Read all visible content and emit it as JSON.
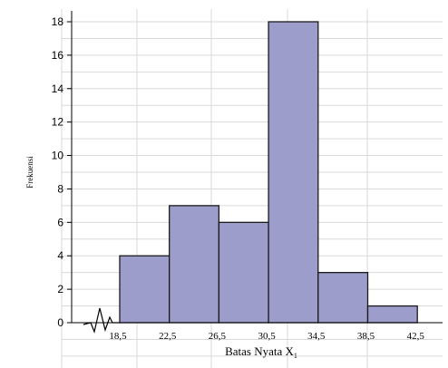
{
  "chart_data": {
    "type": "bar",
    "subtype": "histogram",
    "ylabel": "Frekuensi",
    "xlabel": "Batas  Nyata X",
    "xlabel_subscript": "1",
    "bin_edges": [
      18.5,
      22.5,
      26.5,
      30.5,
      34.5,
      38.5,
      42.5
    ],
    "x_tick_labels": [
      "18,5",
      "22,5",
      "26,5",
      "30,5",
      "34,5",
      "38,5",
      "42,5"
    ],
    "values": [
      4,
      7,
      6,
      18,
      3,
      1
    ],
    "ylim": [
      0,
      18
    ],
    "y_ticks": [
      0,
      2,
      4,
      6,
      8,
      10,
      12,
      14,
      16,
      18
    ],
    "y_tick_labels": [
      "0",
      "2",
      "4",
      "6",
      "8",
      "10",
      "12",
      "14",
      "16",
      "18"
    ],
    "grid": true,
    "axis_break": true,
    "colors": {
      "bar_fill": "#9d9dcc",
      "bar_stroke": "#1a1a1a",
      "grid": "#d9d9d9",
      "axis": "#000000"
    }
  }
}
